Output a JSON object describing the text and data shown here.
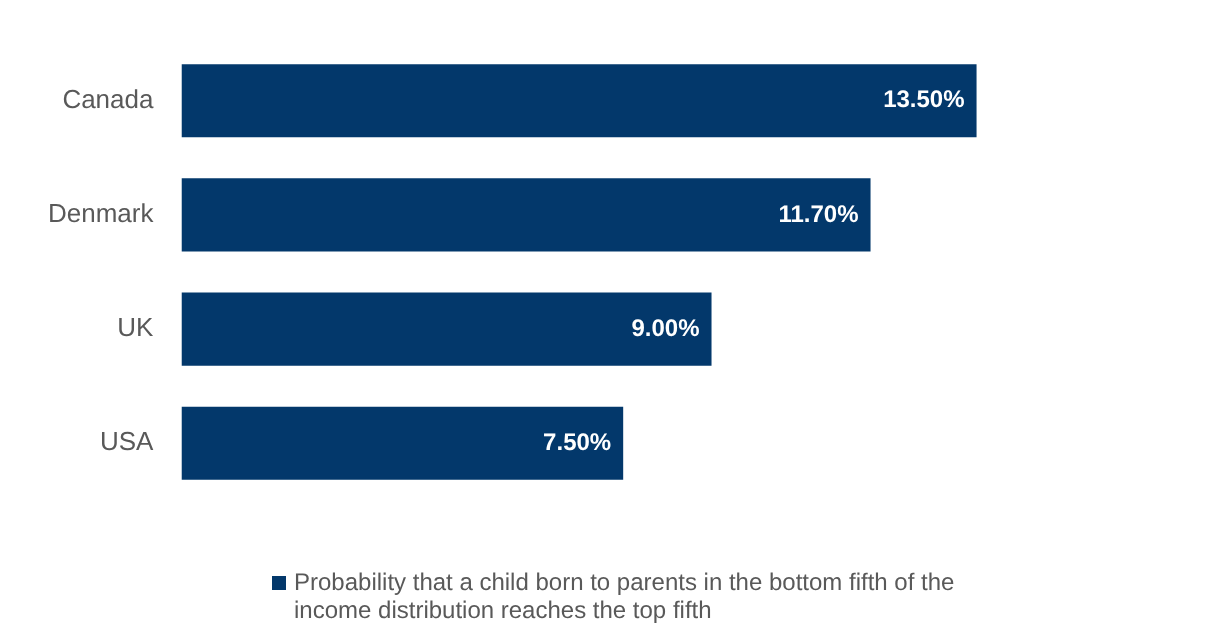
{
  "chart_data": {
    "type": "bar",
    "orientation": "horizontal",
    "categories": [
      "Canada",
      "Denmark",
      "UK",
      "USA"
    ],
    "series": [
      {
        "name": "Probability that a child born to parents in the bottom fifth of the income distribution reaches the top fifth",
        "color": "#03386b",
        "values": [
          13.5,
          11.7,
          9.0,
          7.5
        ],
        "value_labels": [
          "13.50%",
          "11.70%",
          "9.00%",
          "7.50%"
        ]
      }
    ],
    "legend": "bottom",
    "grid": false
  }
}
